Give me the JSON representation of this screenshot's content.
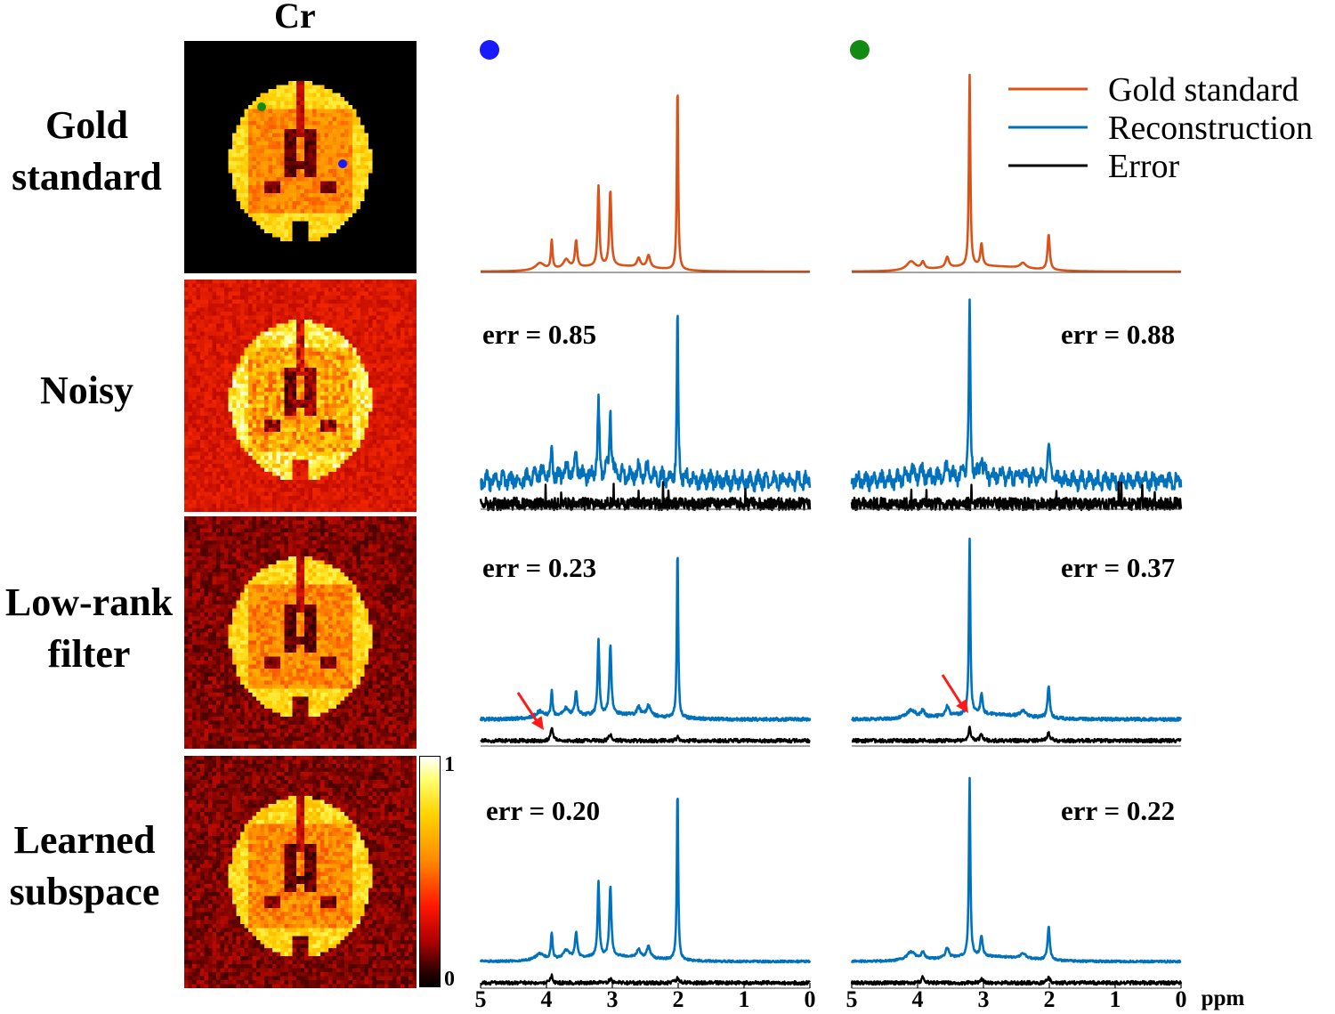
{
  "column_title": "Cr",
  "row_labels": [
    {
      "line1": "Gold",
      "line2": "standard"
    },
    {
      "line1": "Noisy",
      "line2": ""
    },
    {
      "line1": "Low-rank",
      "line2": "filter"
    },
    {
      "line1": "Learned",
      "line2": "subspace"
    }
  ],
  "colorbar": {
    "max_label": "1",
    "min_label": "0"
  },
  "voxel_markers": {
    "blue_color": "#1a1aff",
    "green_color": "#138a13"
  },
  "legend": {
    "entries": [
      {
        "label": "Gold standard",
        "color": "#d95319"
      },
      {
        "label": "Reconstruction",
        "color": "#0072bd"
      },
      {
        "label": "Error",
        "color": "#000000"
      }
    ]
  },
  "errors": {
    "noisy": {
      "blue": "err = 0.85",
      "green": "err = 0.88"
    },
    "lowrank": {
      "blue": "err = 0.23",
      "green": "err = 0.37"
    },
    "learned": {
      "blue": "err = 0.20",
      "green": "err = 0.22"
    }
  },
  "axis": {
    "unit": "ppm",
    "ticks": [
      "5",
      "4",
      "3",
      "2",
      "1",
      "0"
    ]
  },
  "chart_data": {
    "type": "line",
    "xlabel": "ppm",
    "xlim": [
      5,
      0
    ],
    "x_reversed": true,
    "series": [
      {
        "name": "Gold standard",
        "color": "#d95319"
      },
      {
        "name": "Reconstruction",
        "color": "#0072bd"
      },
      {
        "name": "Error",
        "color": "#000000"
      }
    ],
    "peaks": [
      {
        "ppm": 2.01
      },
      {
        "ppm": 3.03
      },
      {
        "ppm": 3.21
      },
      {
        "ppm": 3.55
      },
      {
        "ppm": 3.92
      }
    ]
  }
}
